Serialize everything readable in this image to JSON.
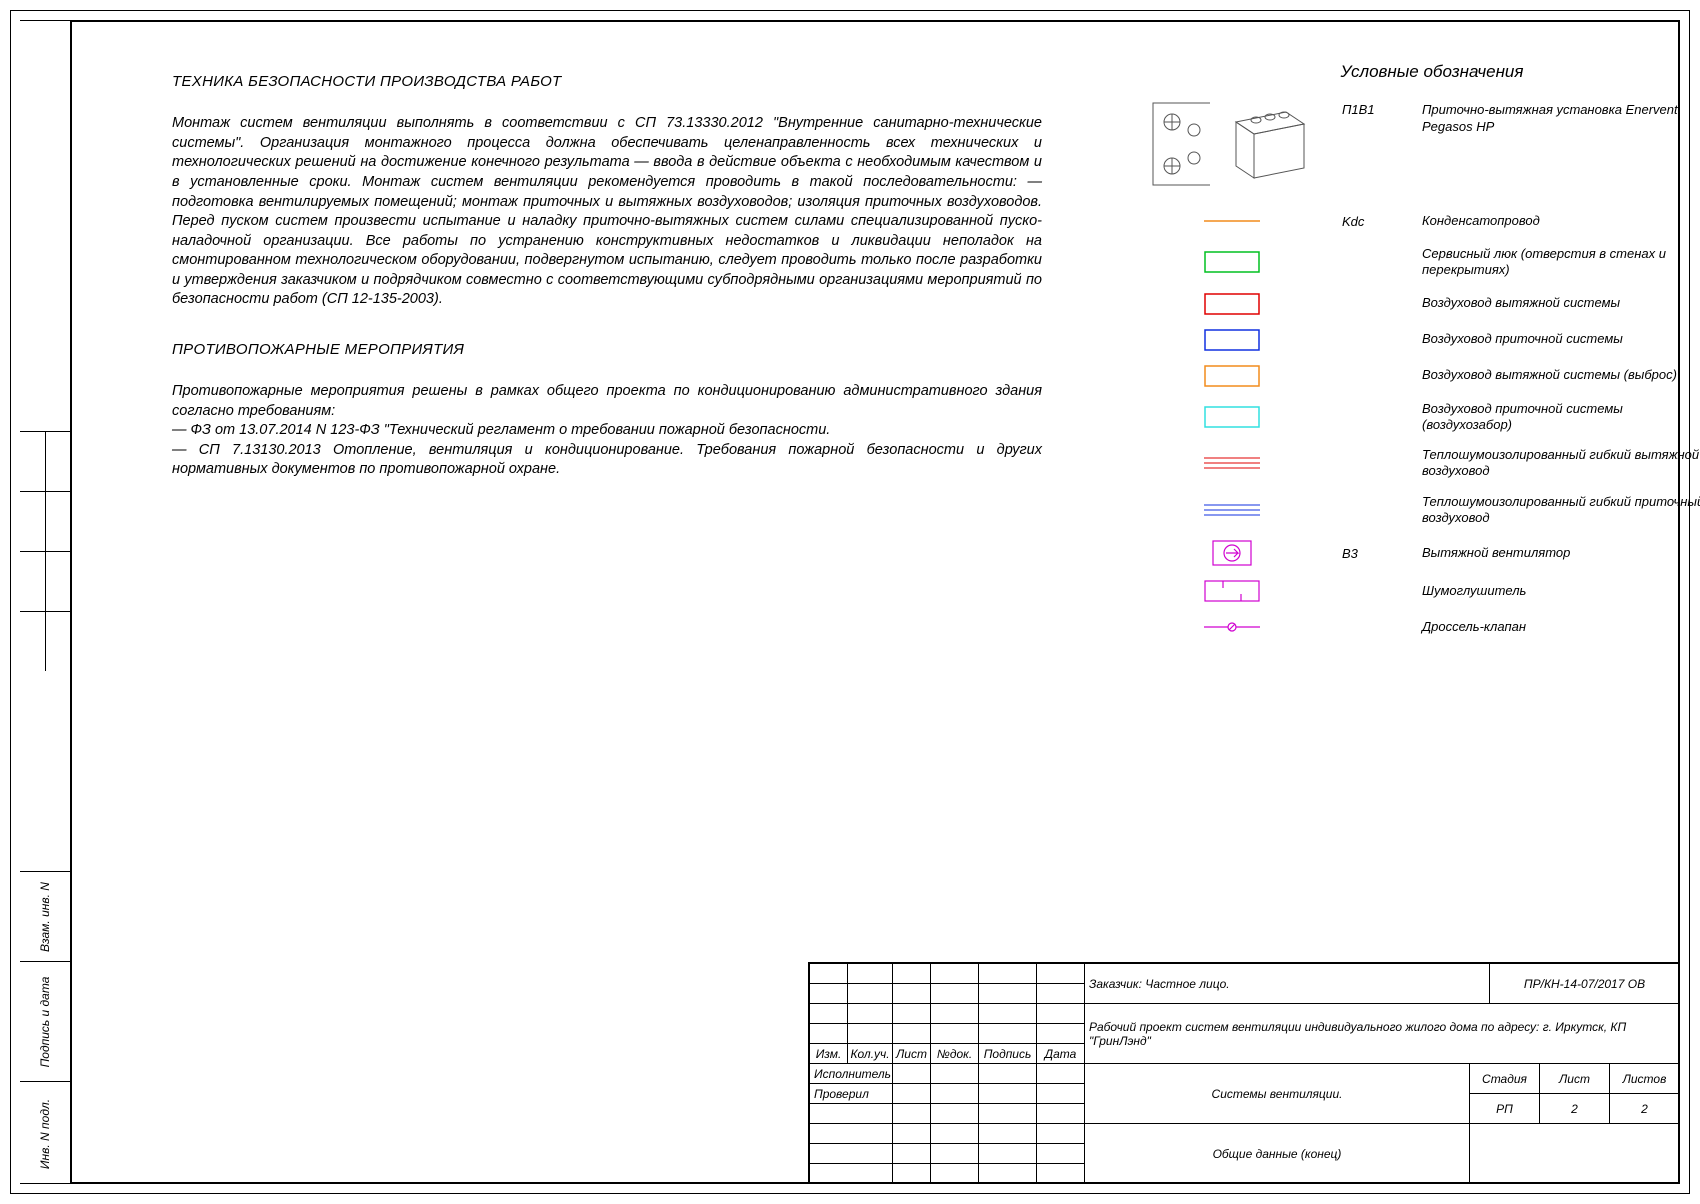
{
  "headings": {
    "safety": "ТЕХНИКА БЕЗОПАСНОСТИ ПРОИЗВОДСТВА РАБОТ",
    "fire": "ПРОТИВОПОЖАРНЫЕ МЕРОПРИЯТИЯ"
  },
  "paragraphs": {
    "safety": "Монтаж систем вентиляции выполнять в соответствии с СП 73.13330.2012 \"Внутренние санитарно-технические системы\". Организация монтажного процесса должна обеспечивать целенаправленность всех технических и технологических решений на достижение конечного результата — ввода в действие объекта с необходимым качеством и в установленные сроки. Монтаж систем вентиляции рекомендуется проводить в такой последовательности: —подготовка вентилируемых помещений; монтаж приточных и вытяжных воздуховодов; изоляция приточных воздуховодов. Перед пуском систем произвести испытание и наладку приточно-вытяжных систем силами специализированной пуско-наладочной организации. Все работы по устранению конструктивных недостатков и ликвидации неполадок на смонтированном технологическом оборудовании, подвергнутом испытанию, следует проводить только после разработки и утверждения заказчиком и подрядчиком совместно с соответствующими субподрядными организациями мероприятий по безопасности работ (СП 12-135-2003).",
    "fire": "Противопожарные мероприятия решены в рамках общего проекта по кондиционированию административного здания согласно требованиям:\n— ФЗ от 13.07.2014 N 123-ФЗ \"Технический регламент о требовании пожарной безопасности.\n— СП 7.13130.2013 Отопление, вентиляция и кондиционирование. Требования пожарной безопасности и других нормативных документов по противопожарной охране."
  },
  "legend": {
    "title": "Условные обозначения",
    "rows": [
      {
        "code": "П1В1",
        "desc": "Приточно-вытяжная установка Enervent Pegasos HP",
        "symbol": "unit-pair"
      },
      {
        "code": "Kdc",
        "desc": "Конденсатопровод",
        "symbol": "line",
        "color": "#f28c1c",
        "style": "solid"
      },
      {
        "code": "",
        "desc": "Сервисный люк (отверстия в стенах и перекрытиях)",
        "symbol": "rect",
        "stroke": "#00c020"
      },
      {
        "code": "",
        "desc": "Воздуховод вытяжной системы",
        "symbol": "rect",
        "stroke": "#e00000"
      },
      {
        "code": "",
        "desc": "Воздуховод приточной системы",
        "symbol": "rect",
        "stroke": "#1030e0"
      },
      {
        "code": "",
        "desc": "Воздуховод вытяжной системы (выброс)",
        "symbol": "rect",
        "stroke": "#f28c1c"
      },
      {
        "code": "",
        "desc": "Воздуховод приточной системы (воздухозабор)",
        "symbol": "rect",
        "stroke": "#30e0e0"
      },
      {
        "code": "",
        "desc": "Теплошумоизолированный гибкий вытяжной воздуховод",
        "symbol": "multiline",
        "color": "#e00000"
      },
      {
        "code": "",
        "desc": "Теплошумоизолированный гибкий приточный воздуховод",
        "symbol": "multiline",
        "color": "#1030e0"
      },
      {
        "code": "В3",
        "desc": "Вытяжной вентилятор",
        "symbol": "fan",
        "stroke": "#d000d0"
      },
      {
        "code": "",
        "desc": "Шумоглушитель",
        "symbol": "silencer",
        "stroke": "#d000d0"
      },
      {
        "code": "",
        "desc": "Дроссель-клапан",
        "symbol": "damper",
        "stroke": "#d000d0"
      }
    ]
  },
  "sidebar": {
    "cells": [
      {
        "label": "Инв. N подл."
      },
      {
        "label": "Подпись и дата"
      },
      {
        "label": "Взам. инв. N"
      }
    ]
  },
  "titleblock": {
    "headers": [
      "Изм.",
      "Кол.уч.",
      "Лист",
      "№док.",
      "Подпись",
      "Дата"
    ],
    "roles": [
      "Исполнитель",
      "Проверил"
    ],
    "customer_label": "Заказчик: Частное лицо.",
    "project_code": "ПР/КН-14-07/2017 ОВ",
    "project_title": "Рабочий проект систем вентиляции индивидуального жилого дома по адресу: г. Иркутск, КП \"ГринЛэнд\"",
    "sheet_title": "Системы вентиляции.",
    "sheet_subtitle": "Общие данные (конец)",
    "stage_label": "Стадия",
    "sheet_label": "Лист",
    "sheets_label": "Листов",
    "stage": "РП",
    "sheet": "2",
    "sheets": "2"
  }
}
